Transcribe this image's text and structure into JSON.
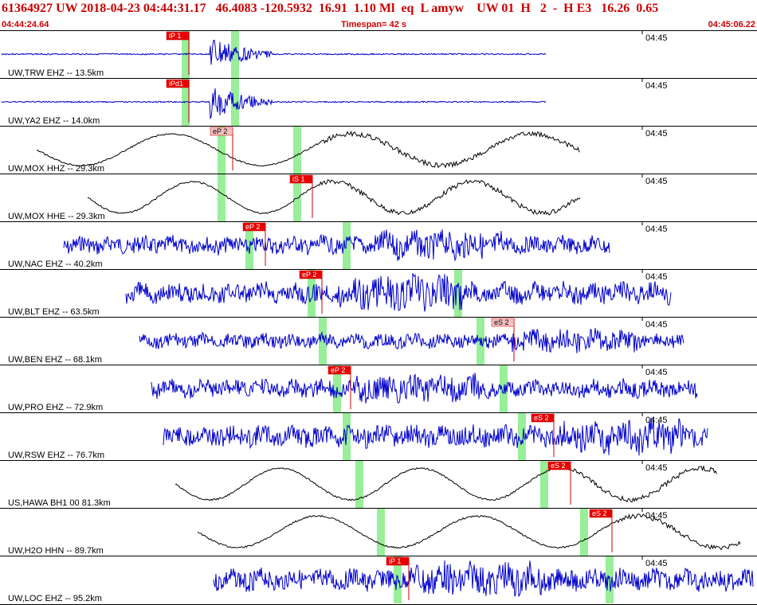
{
  "header": {
    "line1": "61364927 UW 2018-04-23 04:44:31.17   46.4083 -120.5932  16.91  1.10 Ml  eq  L amyw    UW 01  H   2  -  H E3   16.26  0.65",
    "start_time": "04:44:24.64",
    "timespan": "Timespan=  42 s",
    "end_time": "04:45:06.22"
  },
  "colors": {
    "header_text": "#cc0000",
    "trace_blue": "#0000cc",
    "trace_black": "#000000",
    "pick_fill_red": "#e80000",
    "pick_fill_pink": "#f4c0c0",
    "window_green": "#99ee99"
  },
  "traces": [
    {
      "label": "UW,TRW EHZ -- 13.5km",
      "time": "04:45",
      "color": "blue",
      "kind": "burst",
      "picks": [
        {
          "text": "iP 1",
          "style": "red"
        }
      ]
    },
    {
      "label": "UW,YA2 EHZ -- 14.0km",
      "time": "04:45",
      "color": "blue",
      "kind": "burst",
      "picks": [
        {
          "text": "iPd1",
          "style": "red"
        }
      ]
    },
    {
      "label": "UW,MOX HHZ -- 29.3km",
      "time": "04:45",
      "color": "black",
      "kind": "wave",
      "picks": [
        {
          "text": "eP 2",
          "style": "pink"
        }
      ]
    },
    {
      "label": "UW,MOX HHE -- 29.3km",
      "time": "04:45",
      "color": "black",
      "kind": "wave",
      "picks": [
        {
          "text": "iS 1",
          "style": "red"
        }
      ]
    },
    {
      "label": "UW,NAC EHZ -- 40.2km",
      "time": "04:45",
      "color": "blue",
      "kind": "noise",
      "picks": [
        {
          "text": "eP 2",
          "style": "red"
        }
      ]
    },
    {
      "label": "UW,BLT EHZ -- 63.5km",
      "time": "04:45",
      "color": "blue",
      "kind": "noise",
      "picks": [
        {
          "text": "eP 2",
          "style": "red"
        }
      ]
    },
    {
      "label": "UW,BEN EHZ -- 68.1km",
      "time": "04:45",
      "color": "blue",
      "kind": "noise",
      "picks": [
        {
          "text": "eS 2",
          "style": "pink"
        }
      ]
    },
    {
      "label": "UW,PRO EHZ -- 72.9km",
      "time": "04:45",
      "color": "blue",
      "kind": "noise",
      "picks": [
        {
          "text": "eP 2",
          "style": "red"
        }
      ]
    },
    {
      "label": "UW,RSW EHZ -- 76.7km",
      "time": "04:45",
      "color": "blue",
      "kind": "noise",
      "picks": [
        {
          "text": "eS 2",
          "style": "red"
        }
      ]
    },
    {
      "label": "US,HAWA BH1 00 81.3km",
      "time": "04:45",
      "color": "black",
      "kind": "wave",
      "picks": [
        {
          "text": "eS 2",
          "style": "red"
        }
      ]
    },
    {
      "label": "UW,H2O HHN -- 89.7km",
      "time": "04:45",
      "color": "black",
      "kind": "wave",
      "picks": [
        {
          "text": "eS 2",
          "style": "red"
        }
      ]
    },
    {
      "label": "UW,LOC EHZ -- 95.2km",
      "time": "04:45",
      "color": "blue",
      "kind": "noise",
      "picks": [
        {
          "text": "iP 1",
          "style": "red"
        }
      ]
    }
  ]
}
